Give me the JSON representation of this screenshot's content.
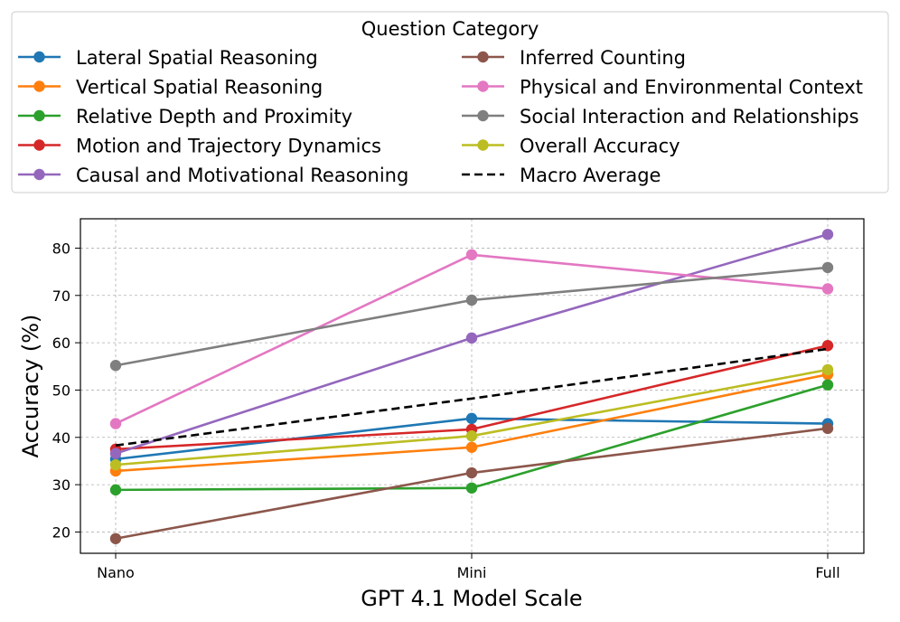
{
  "chart_data": {
    "type": "line",
    "title": "",
    "xlabel": "GPT 4.1 Model Scale",
    "ylabel": "Accuracy (%)",
    "categories": [
      "Nano",
      "Mini",
      "Full"
    ],
    "ylim": [
      15.5,
      86.2
    ],
    "yticks": [
      20,
      30,
      40,
      50,
      60,
      70,
      80
    ],
    "grid": true,
    "legend": {
      "title": "Question Category",
      "position": "top",
      "columns": 2
    },
    "series": [
      {
        "name": "Lateral Spatial Reasoning",
        "color": "#1f77b4",
        "dashed": false,
        "marker": true,
        "values": [
          35.4,
          44.0,
          42.9
        ]
      },
      {
        "name": "Vertical Spatial Reasoning",
        "color": "#ff7f0e",
        "dashed": false,
        "marker": true,
        "values": [
          32.9,
          37.9,
          53.3
        ]
      },
      {
        "name": "Relative Depth and Proximity",
        "color": "#2ca02c",
        "dashed": false,
        "marker": true,
        "values": [
          28.9,
          29.3,
          51.1
        ]
      },
      {
        "name": "Motion and Trajectory Dynamics",
        "color": "#d62728",
        "dashed": false,
        "marker": true,
        "values": [
          37.5,
          41.7,
          59.4
        ]
      },
      {
        "name": "Causal and Motivational Reasoning",
        "color": "#9467bd",
        "dashed": false,
        "marker": true,
        "values": [
          36.6,
          61.0,
          82.9
        ]
      },
      {
        "name": "Inferred Counting",
        "color": "#8c564b",
        "dashed": false,
        "marker": true,
        "values": [
          18.6,
          32.5,
          41.9
        ]
      },
      {
        "name": "Physical and Environmental Context",
        "color": "#e377c2",
        "dashed": false,
        "marker": true,
        "values": [
          42.9,
          78.6,
          71.4
        ]
      },
      {
        "name": "Social Interaction and Relationships",
        "color": "#7f7f7f",
        "dashed": false,
        "marker": true,
        "values": [
          55.2,
          69.0,
          75.9
        ]
      },
      {
        "name": "Overall Accuracy",
        "color": "#bcbd22",
        "dashed": false,
        "marker": true,
        "values": [
          34.2,
          40.3,
          54.3
        ]
      },
      {
        "name": "Macro Average",
        "color": "#000000",
        "dashed": true,
        "marker": false,
        "values": [
          38.3,
          48.2,
          58.7
        ]
      }
    ]
  }
}
